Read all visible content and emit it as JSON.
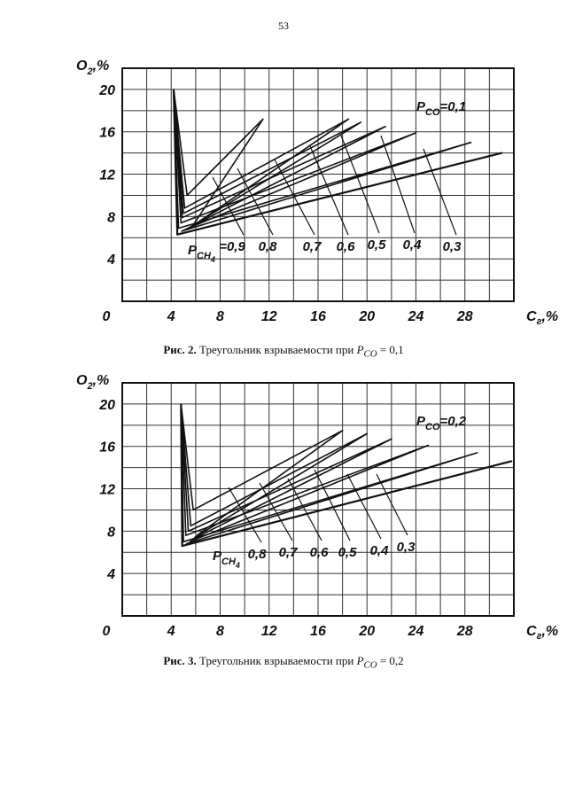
{
  "page_number": "53",
  "figures": [
    {
      "caption_bold": "Рис. 2.",
      "caption_text": " Треугольник взрываемости при ",
      "caption_math": "P",
      "caption_sub": "CO",
      "caption_value": " = 0,1",
      "param_label": "P",
      "param_sub": "CO",
      "param_value": "=0,1",
      "ch4_label": "P",
      "ch4_sub": "CH",
      "ch4_subsub": "4",
      "ch4_values": [
        "=0,9",
        "0,8",
        "0,7",
        "0,6",
        "0,5",
        "0,4",
        "0,3"
      ]
    },
    {
      "caption_bold": "Рис. 3.",
      "caption_text": " Треугольник взрываемости при ",
      "caption_math": "P",
      "caption_sub": "CO",
      "caption_value": " = 0,2",
      "param_label": "P",
      "param_sub": "CO",
      "param_value": "=0,2",
      "ch4_label": "P",
      "ch4_sub": "CH",
      "ch4_subsub": "4",
      "ch4_values": [
        "0,8",
        "0,7",
        "0,6",
        "0,5",
        "0,4",
        "0,3"
      ]
    }
  ],
  "chart_data": [
    {
      "type": "line",
      "title": "",
      "xlabel": "Cг,%",
      "ylabel": "O2,%",
      "xlim": [
        0,
        32
      ],
      "ylim": [
        0,
        22
      ],
      "x_ticks": [
        "0",
        "4",
        "8",
        "12",
        "16",
        "20",
        "24",
        "28"
      ],
      "y_ticks": [
        "4",
        "8",
        "12",
        "16",
        "20"
      ],
      "grid": true,
      "series": [
        {
          "name": "=0,9",
          "values": [
            [
              4.2,
              20
            ],
            [
              5.3,
              10
            ],
            [
              11.5,
              17.2
            ],
            [
              5.8,
              7.2
            ]
          ]
        },
        {
          "name": "0,8",
          "values": [
            [
              4.2,
              20
            ],
            [
              5.1,
              8.8
            ],
            [
              18.5,
              17.2
            ],
            [
              5.6,
              7.0
            ]
          ]
        },
        {
          "name": "0,7",
          "values": [
            [
              4.2,
              20
            ],
            [
              5.0,
              8.3
            ],
            [
              19.5,
              16.9
            ],
            [
              5.4,
              6.9
            ]
          ]
        },
        {
          "name": "0,6",
          "values": [
            [
              4.2,
              20
            ],
            [
              4.9,
              7.9
            ],
            [
              21.5,
              16.5
            ],
            [
              5.2,
              6.8
            ]
          ]
        },
        {
          "name": "0,5",
          "values": [
            [
              4.2,
              20
            ],
            [
              4.8,
              7.4
            ],
            [
              24.0,
              15.9
            ],
            [
              5.0,
              6.7
            ]
          ]
        },
        {
          "name": "0,4",
          "values": [
            [
              4.2,
              20
            ],
            [
              4.6,
              6.9
            ],
            [
              28.5,
              15.0
            ],
            [
              4.8,
              6.6
            ]
          ]
        },
        {
          "name": "0,3",
          "values": [
            [
              4.2,
              20
            ],
            [
              4.5,
              6.3
            ],
            [
              31.0,
              14.0
            ],
            [
              4.5,
              6.3
            ]
          ]
        }
      ]
    },
    {
      "type": "line",
      "title": "",
      "xlabel": "Cг,%",
      "ylabel": "O2,%",
      "xlim": [
        0,
        32
      ],
      "ylim": [
        0,
        22
      ],
      "x_ticks": [
        "0",
        "4",
        "8",
        "12",
        "16",
        "20",
        "24",
        "28"
      ],
      "y_ticks": [
        "4",
        "8",
        "12",
        "16",
        "20"
      ],
      "grid": true,
      "series": [
        {
          "name": "0,8",
          "values": [
            [
              4.8,
              20
            ],
            [
              5.8,
              10
            ],
            [
              18.0,
              17.5
            ],
            [
              6.1,
              7.6
            ]
          ]
        },
        {
          "name": "0,7",
          "values": [
            [
              4.8,
              20
            ],
            [
              5.6,
              8.5
            ],
            [
              20.0,
              17.2
            ],
            [
              5.9,
              7.4
            ]
          ]
        },
        {
          "name": "0,6",
          "values": [
            [
              4.8,
              20
            ],
            [
              5.4,
              8.0
            ],
            [
              22.0,
              16.7
            ],
            [
              5.7,
              7.2
            ]
          ]
        },
        {
          "name": "0,5",
          "values": [
            [
              4.8,
              20
            ],
            [
              5.2,
              7.6
            ],
            [
              25.0,
              16.1
            ],
            [
              5.5,
              7.0
            ]
          ]
        },
        {
          "name": "0,4",
          "values": [
            [
              4.8,
              20
            ],
            [
              5.0,
              7.0
            ],
            [
              29.0,
              15.4
            ],
            [
              5.2,
              6.8
            ]
          ]
        },
        {
          "name": "0,3",
          "values": [
            [
              4.8,
              20
            ],
            [
              4.9,
              6.6
            ],
            [
              31.8,
              14.6
            ],
            [
              4.9,
              6.6
            ]
          ]
        }
      ]
    }
  ]
}
